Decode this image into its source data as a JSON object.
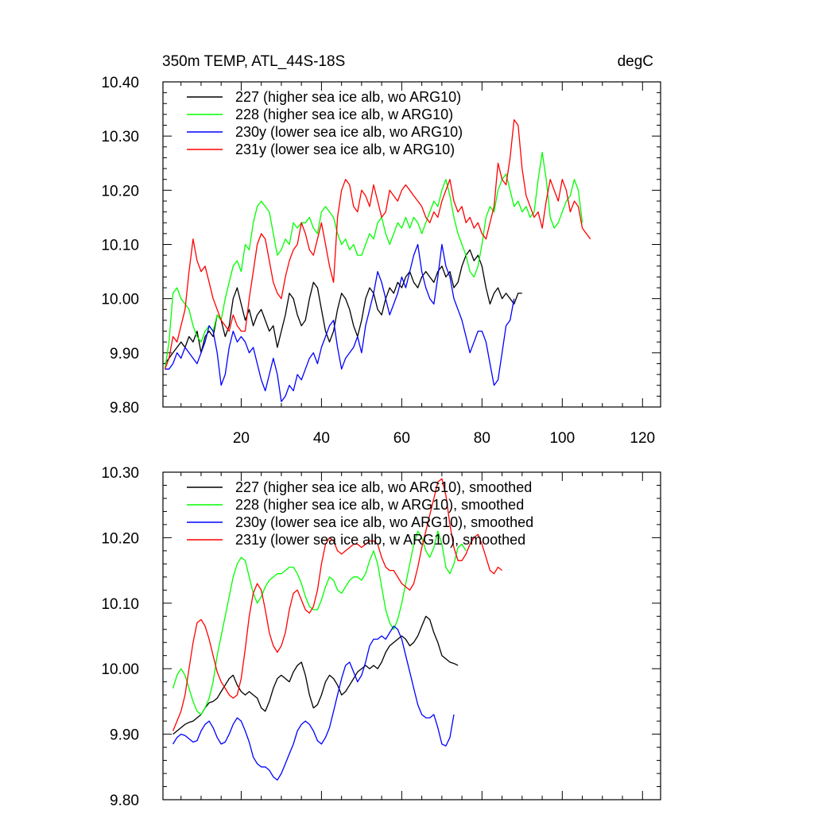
{
  "chart_data": [
    {
      "type": "line",
      "title": "350m TEMP, ATL_44S-18S",
      "units_label": "degC",
      "xlabel": "",
      "ylabel": "",
      "xlim": [
        0.5,
        124.5
      ],
      "ylim": [
        9.8,
        10.4
      ],
      "xticks": [
        20,
        40,
        60,
        80,
        100,
        120
      ],
      "xtick_labels": [
        "20",
        "40",
        "60",
        "80",
        "100",
        "120"
      ],
      "yticks": [
        9.8,
        9.9,
        10.0,
        10.1,
        10.2,
        10.3,
        10.4
      ],
      "ytick_labels": [
        "9.80",
        "9.90",
        "10.00",
        "10.10",
        "10.20",
        "10.30",
        "10.40"
      ],
      "grid": false,
      "legend": "top-left, inside",
      "series": [
        {
          "name": "227 (higher sea ice alb, wo ARG10)",
          "color": "#000000",
          "x_start": 1,
          "values": [
            9.88,
            9.89,
            9.9,
            9.91,
            9.92,
            9.91,
            9.93,
            9.92,
            9.94,
            9.9,
            9.93,
            9.94,
            9.93,
            9.97,
            9.96,
            9.93,
            9.95,
            10.0,
            10.02,
            9.99,
            9.96,
            9.98,
            9.95,
            9.97,
            9.98,
            9.96,
            9.94,
            9.95,
            9.91,
            9.94,
            9.97,
            10.01,
            10.0,
            9.97,
            9.95,
            9.96,
            10.0,
            10.03,
            10.02,
            9.98,
            9.94,
            9.92,
            9.94,
            9.98,
            10.01,
            10.0,
            9.98,
            9.95,
            9.93,
            9.96,
            10.0,
            10.02,
            10.01,
            9.98,
            9.97,
            10.0,
            10.02,
            10.01,
            10.03,
            10.02,
            10.04,
            10.05,
            10.03,
            10.02,
            10.04,
            10.05,
            10.04,
            10.03,
            10.05,
            10.06,
            10.04,
            10.05,
            10.02,
            10.03,
            10.06,
            10.08,
            10.09,
            10.07,
            10.08,
            10.06,
            10.02,
            9.99,
            10.01,
            10.02,
            10.0,
            10.01,
            10.0,
            9.99,
            10.01,
            10.01
          ]
        },
        {
          "name": "228 (higher sea ice alb, w ARG10)",
          "color": "#00ff00",
          "x_start": 1,
          "values": [
            9.87,
            9.92,
            10.01,
            10.02,
            10.0,
            9.99,
            9.98,
            9.95,
            9.93,
            9.92,
            9.94,
            9.95,
            9.94,
            9.97,
            9.96,
            10.0,
            10.03,
            10.06,
            10.07,
            10.05,
            10.1,
            10.09,
            10.14,
            10.17,
            10.18,
            10.17,
            10.16,
            10.12,
            10.08,
            10.09,
            10.11,
            10.1,
            10.14,
            10.13,
            10.14,
            10.14,
            10.15,
            10.13,
            10.12,
            10.16,
            10.17,
            10.16,
            10.15,
            10.12,
            10.1,
            10.11,
            10.09,
            10.1,
            10.08,
            10.08,
            10.1,
            10.12,
            10.11,
            10.14,
            10.15,
            10.12,
            10.1,
            10.12,
            10.14,
            10.13,
            10.15,
            10.13,
            10.15,
            10.14,
            10.12,
            10.14,
            10.16,
            10.18,
            10.17,
            10.2,
            10.22,
            10.19,
            10.15,
            10.12,
            10.1,
            10.08,
            10.05,
            10.04,
            10.06,
            10.1,
            10.15,
            10.17,
            10.16,
            10.2,
            10.22,
            10.23,
            10.2,
            10.17,
            10.18,
            10.16,
            10.17,
            10.15,
            10.16,
            10.22,
            10.27,
            10.22,
            10.15,
            10.13,
            10.14,
            10.16,
            10.18,
            10.19,
            10.22,
            10.2,
            10.14
          ]
        },
        {
          "name": "230y (lower sea ice alb, wo ARG10)",
          "color": "#0000ff",
          "x_start": 1,
          "values": [
            9.87,
            9.87,
            9.88,
            9.9,
            9.89,
            9.91,
            9.9,
            9.89,
            9.88,
            9.9,
            9.92,
            9.95,
            9.94,
            9.9,
            9.84,
            9.86,
            9.91,
            9.94,
            9.92,
            9.93,
            9.92,
            9.9,
            9.91,
            9.88,
            9.85,
            9.83,
            9.86,
            9.89,
            9.86,
            9.81,
            9.82,
            9.84,
            9.83,
            9.86,
            9.85,
            9.87,
            9.89,
            9.9,
            9.88,
            9.91,
            9.93,
            9.95,
            9.96,
            9.91,
            9.87,
            9.89,
            9.9,
            9.91,
            9.93,
            9.9,
            9.95,
            9.98,
            10.01,
            10.05,
            10.03,
            10.0,
            9.97,
            9.99,
            10.01,
            10.04,
            10.02,
            10.05,
            10.08,
            10.1,
            10.05,
            10.02,
            10.0,
            9.99,
            10.04,
            10.1,
            10.06,
            10.04,
            10.0,
            9.98,
            9.96,
            9.93,
            9.9,
            9.92,
            9.94,
            9.94,
            9.92,
            9.88,
            9.84,
            9.85,
            9.9,
            9.95,
            9.96,
            10.0
          ]
        },
        {
          "name": "231y (lower sea ice alb, w ARG10)",
          "color": "#ff0000",
          "x_start": 1,
          "values": [
            9.87,
            9.89,
            9.93,
            9.92,
            9.95,
            9.98,
            10.05,
            10.11,
            10.07,
            10.05,
            10.06,
            10.03,
            10.0,
            9.98,
            9.96,
            9.95,
            9.94,
            9.97,
            9.95,
            9.94,
            9.94,
            10.0,
            10.05,
            10.1,
            10.12,
            10.11,
            10.07,
            10.03,
            10.01,
            10.0,
            10.04,
            10.07,
            10.09,
            10.1,
            10.14,
            10.12,
            10.09,
            10.08,
            10.11,
            10.14,
            10.1,
            10.06,
            10.03,
            10.15,
            10.2,
            10.22,
            10.21,
            10.17,
            10.16,
            10.2,
            10.19,
            10.17,
            10.21,
            10.18,
            10.15,
            10.16,
            10.2,
            10.19,
            10.18,
            10.2,
            10.21,
            10.2,
            10.19,
            10.18,
            10.17,
            10.15,
            10.14,
            10.16,
            10.15,
            10.18,
            10.2,
            10.22,
            10.18,
            10.16,
            10.17,
            10.14,
            10.15,
            10.13,
            10.14,
            10.12,
            10.11,
            10.14,
            10.17,
            10.25,
            10.22,
            10.21,
            10.26,
            10.33,
            10.32,
            10.24,
            10.19,
            10.17,
            10.15,
            10.16,
            10.13,
            10.18,
            10.22,
            10.2,
            10.18,
            10.22,
            10.2,
            10.16,
            10.18,
            10.17,
            10.13,
            10.12,
            10.11
          ]
        }
      ]
    },
    {
      "type": "line",
      "title": "",
      "xlabel": "",
      "ylabel": "",
      "xlim": [
        0.5,
        124.5
      ],
      "ylim": [
        9.8,
        10.3
      ],
      "xticks": [
        20,
        40,
        60,
        80,
        100,
        120
      ],
      "yticks": [
        9.8,
        9.9,
        10.0,
        10.1,
        10.2,
        10.3
      ],
      "ytick_labels": [
        "9.80",
        "9.90",
        "10.00",
        "10.10",
        "10.20",
        "10.30"
      ],
      "grid": false,
      "legend": "top-left, inside",
      "series": [
        {
          "name": "227 (higher sea ice alb, wo ARG10), smoothed",
          "color": "#000000",
          "x_start": 3,
          "values": [
            9.9,
            9.905,
            9.91,
            9.915,
            9.918,
            9.92,
            9.925,
            9.93,
            9.94,
            9.948,
            9.95,
            9.955,
            9.965,
            9.975,
            9.985,
            9.99,
            9.975,
            9.965,
            9.96,
            9.965,
            9.96,
            9.955,
            9.94,
            9.935,
            9.95,
            9.97,
            9.985,
            9.99,
            9.985,
            9.98,
            9.995,
            10.005,
            10.01,
            9.99,
            9.96,
            9.94,
            9.945,
            9.96,
            9.98,
            9.99,
            9.985,
            9.975,
            9.96,
            9.965,
            9.975,
            9.985,
            9.995,
            10.0,
            10.005,
            10.0,
            10.005,
            10.0,
            10.01,
            10.025,
            10.035,
            10.04,
            10.045,
            10.05,
            10.045,
            10.035,
            10.04,
            10.05,
            10.065,
            10.08,
            10.075,
            10.055,
            10.04,
            10.02,
            10.015,
            10.01,
            10.008,
            10.005
          ]
        },
        {
          "name": "228 (higher sea ice alb, w ARG10), smoothed",
          "color": "#00ff00",
          "x_start": 3,
          "values": [
            9.97,
            9.99,
            10.0,
            9.99,
            9.97,
            9.95,
            9.935,
            9.93,
            9.94,
            9.955,
            9.98,
            10.02,
            10.05,
            10.08,
            10.11,
            10.14,
            10.16,
            10.17,
            10.165,
            10.14,
            10.115,
            10.1,
            10.11,
            10.125,
            10.135,
            10.14,
            10.145,
            10.145,
            10.15,
            10.155,
            10.155,
            10.145,
            10.13,
            10.11,
            10.095,
            10.09,
            10.09,
            10.105,
            10.125,
            10.14,
            10.135,
            10.12,
            10.115,
            10.125,
            10.135,
            10.14,
            10.14,
            10.135,
            10.145,
            10.165,
            10.18,
            10.16,
            10.125,
            10.09,
            10.07,
            10.06,
            10.075,
            10.1,
            10.13,
            10.16,
            10.19,
            10.21,
            10.2,
            10.18,
            10.17,
            10.185,
            10.21,
            10.19,
            10.155,
            10.145,
            10.16,
            10.185,
            10.19,
            10.18
          ]
        },
        {
          "name": "230y (lower sea ice alb, wo ARG10), smoothed",
          "color": "#0000ff",
          "x_start": 3,
          "values": [
            9.885,
            9.895,
            9.9,
            9.898,
            9.893,
            9.888,
            9.89,
            9.905,
            9.915,
            9.92,
            9.91,
            9.895,
            9.885,
            9.888,
            9.9,
            9.915,
            9.925,
            9.92,
            9.905,
            9.888,
            9.865,
            9.855,
            9.85,
            9.85,
            9.845,
            9.835,
            9.83,
            9.84,
            9.855,
            9.87,
            9.885,
            9.905,
            9.915,
            9.92,
            9.915,
            9.905,
            9.89,
            9.885,
            9.895,
            9.91,
            9.935,
            9.96,
            9.985,
            10.005,
            10.01,
            9.995,
            9.98,
            9.99,
            10.01,
            10.035,
            10.045,
            10.045,
            10.05,
            10.045,
            10.055,
            10.065,
            10.06,
            10.045,
            10.02,
            9.995,
            9.97,
            9.945,
            9.93,
            9.925,
            9.925,
            9.93,
            9.91,
            9.885,
            9.882,
            9.895,
            9.93
          ]
        },
        {
          "name": "231y (lower sea ice alb, w ARG10), smoothed",
          "color": "#ff0000",
          "x_start": 3,
          "values": [
            9.905,
            9.92,
            9.935,
            9.96,
            10.0,
            10.04,
            10.07,
            10.075,
            10.065,
            10.045,
            10.02,
            9.995,
            9.98,
            9.97,
            9.96,
            9.955,
            9.96,
            9.985,
            10.03,
            10.08,
            10.115,
            10.13,
            10.12,
            10.09,
            10.055,
            10.035,
            10.025,
            10.035,
            10.055,
            10.09,
            10.115,
            10.12,
            10.105,
            10.09,
            10.085,
            10.095,
            10.12,
            10.16,
            10.19,
            10.2,
            10.195,
            10.18,
            10.175,
            10.18,
            10.185,
            10.19,
            10.19,
            10.185,
            10.19,
            10.195,
            10.195,
            10.19,
            10.17,
            10.155,
            10.15,
            10.15,
            10.14,
            10.13,
            10.125,
            10.12,
            10.13,
            10.155,
            10.185,
            10.21,
            10.235,
            10.26,
            10.285,
            10.29,
            10.265,
            10.22,
            10.185,
            10.165,
            10.165,
            10.175,
            10.19,
            10.2,
            10.205,
            10.19,
            10.17,
            10.15,
            10.145,
            10.155,
            10.15
          ]
        }
      ]
    }
  ]
}
